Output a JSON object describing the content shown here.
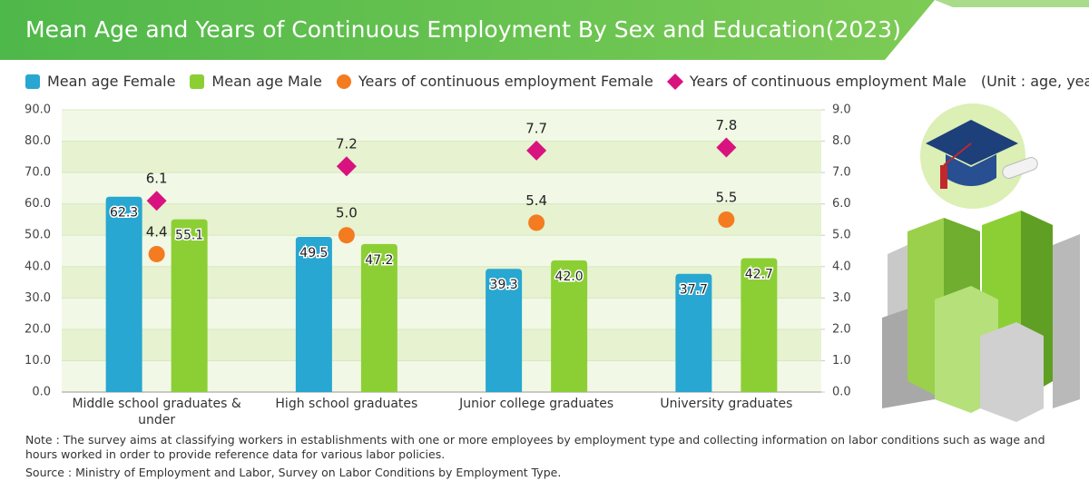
{
  "chart_data": {
    "type": "bar",
    "title": "Mean Age and Years of Continuous Employment By Sex and Education(2023)",
    "unit": "(Unit : age, year)",
    "note": "Note : The survey aims at classifying workers in establishments with one or more employees by employment type and collecting information on labor conditions such as wage and hours worked in order to provide reference data for various labor policies.",
    "source": "Source : Ministry of Employment and Labor, Survey on Labor Conditions by Employment Type.",
    "categories": [
      "Middle school graduates & under",
      "High school graduates",
      "Junior college graduates",
      "University graduates"
    ],
    "series": [
      {
        "name": "Mean age Female",
        "color": "#27a7d1",
        "mark": "bar",
        "values": [
          62.3,
          49.5,
          39.3,
          37.7
        ],
        "value_labels": [
          "62.3",
          "49.5",
          "39.3",
          "37.7"
        ]
      },
      {
        "name": "Mean age Male",
        "color": "#8ccf34",
        "mark": "bar",
        "values": [
          55.1,
          47.2,
          42.0,
          42.7
        ],
        "value_labels": [
          "55.1",
          "47.2",
          "42.0",
          "42.7"
        ]
      },
      {
        "name": "Years of continuous employment Female",
        "color": "#f47b20",
        "mark": "circle",
        "axis": "y2",
        "values": [
          4.4,
          5.0,
          5.4,
          5.5
        ],
        "value_labels": [
          "4.4",
          "5.0",
          "5.4",
          "5.5"
        ]
      },
      {
        "name": "Years of continuous employment Male",
        "color": "#d8137f",
        "mark": "diamond",
        "axis": "y2",
        "values": [
          6.1,
          7.2,
          7.7,
          7.8
        ],
        "value_labels": [
          "6.1",
          "7.2",
          "7.7",
          "7.8"
        ]
      }
    ],
    "ylim": [
      0,
      90
    ],
    "yticks": [
      {
        "value": 0,
        "label": "0.0"
      },
      {
        "value": 10,
        "label": "10.0"
      },
      {
        "value": 20,
        "label": "20.0"
      },
      {
        "value": 30,
        "label": "30.0"
      },
      {
        "value": 40,
        "label": "40.0"
      },
      {
        "value": 50,
        "label": "50.0"
      },
      {
        "value": 60,
        "label": "60.0"
      },
      {
        "value": 70,
        "label": "70.0"
      },
      {
        "value": 80,
        "label": "80.0"
      },
      {
        "value": 90,
        "label": "90.0"
      }
    ],
    "y2lim": [
      0,
      9
    ],
    "y2ticks": [
      {
        "value": 0,
        "label": "0.0"
      },
      {
        "value": 1,
        "label": "1.0"
      },
      {
        "value": 2,
        "label": "2.0"
      },
      {
        "value": 3,
        "label": "3.0"
      },
      {
        "value": 4,
        "label": "4.0"
      },
      {
        "value": 5,
        "label": "5.0"
      },
      {
        "value": 6,
        "label": "6.0"
      },
      {
        "value": 7,
        "label": "7.0"
      },
      {
        "value": 8,
        "label": "8.0"
      },
      {
        "value": 9,
        "label": "9.0"
      }
    ]
  }
}
